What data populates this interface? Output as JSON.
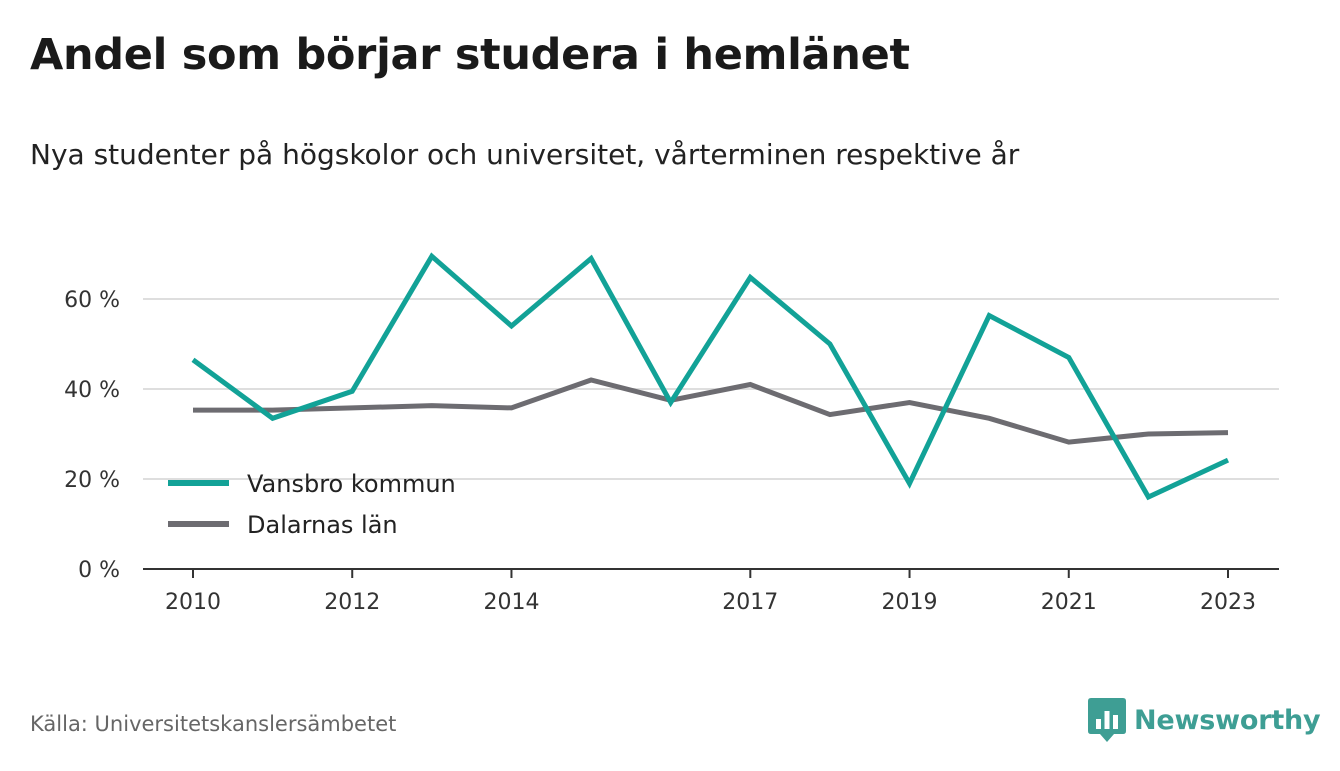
{
  "header": {
    "title": "Andel som börjar studera i hemlänet",
    "subtitle": "Nya studenter på högskolor och universitet, vårterminen respektive år"
  },
  "footer": {
    "source": "Källa: Universitetskanslersämbetet",
    "brand": "Newsworthy",
    "brand_icon": "newsworthy-bar-chart-icon"
  },
  "colors": {
    "vansbro": "#12a297",
    "dalarna": "#6d6c71",
    "grid": "#dedede",
    "axis": "#333333",
    "brand": "#3e9e94"
  },
  "chart_data": {
    "type": "line",
    "title": "Andel som börjar studera i hemlänet",
    "subtitle": "Nya studenter på högskolor och universitet, vårterminen respektive år",
    "x": [
      2010,
      2011,
      2012,
      2013,
      2014,
      2015,
      2016,
      2017,
      2018,
      2019,
      2020,
      2021,
      2022,
      2023
    ],
    "x_tick_labels": [
      "2010",
      "2012",
      "2014",
      "2017",
      "2019",
      "2021",
      "2023"
    ],
    "y_ticks": [
      0,
      20,
      40,
      60
    ],
    "y_tick_labels": [
      "0 %",
      "20 %",
      "40 %",
      "60 %"
    ],
    "ylim": [
      0,
      70
    ],
    "xlabel": "",
    "ylabel": "",
    "grid": true,
    "legend_position": "bottom-left",
    "series": [
      {
        "name": "Vansbro kommun",
        "color": "#12a297",
        "values": [
          46.5,
          33.5,
          39.5,
          69.5,
          54,
          69,
          37,
          64.8,
          50,
          19,
          56.3,
          47,
          16,
          24.2
        ]
      },
      {
        "name": "Dalarnas län",
        "color": "#6d6c71",
        "values": [
          35.3,
          35.3,
          35.8,
          36.3,
          35.8,
          42,
          37.5,
          41,
          34.3,
          37,
          33.5,
          28.2,
          30,
          30.3
        ]
      }
    ]
  }
}
